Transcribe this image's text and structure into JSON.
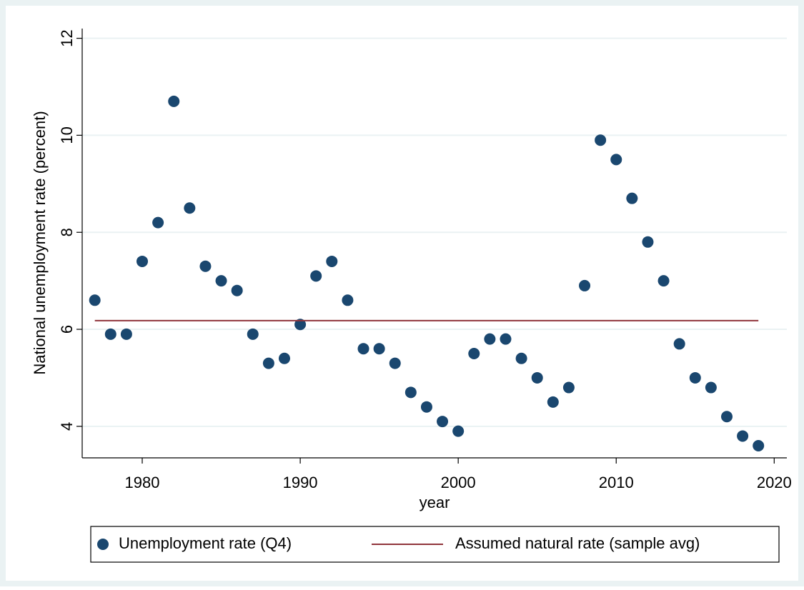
{
  "chart_data": {
    "type": "scatter",
    "x_label": "year",
    "y_label": "National unemployment rate (percent)",
    "xlim": [
      1976.2,
      2020.8
    ],
    "xticks": [
      1980,
      1990,
      2000,
      2010,
      2020
    ],
    "ylim": [
      3.35,
      12.2
    ],
    "yticks": [
      4,
      6,
      8,
      10,
      12
    ],
    "grid": true,
    "legend": "bottom",
    "series": [
      {
        "name": "Unemployment rate (Q4)",
        "color": "#1a476f",
        "type": "scatter",
        "x": [
          1977,
          1978,
          1979,
          1980,
          1981,
          1982,
          1983,
          1984,
          1985,
          1986,
          1987,
          1988,
          1989,
          1990,
          1991,
          1992,
          1993,
          1994,
          1995,
          1996,
          1997,
          1998,
          1999,
          2000,
          2001,
          2002,
          2003,
          2004,
          2005,
          2006,
          2007,
          2008,
          2009,
          2010,
          2011,
          2012,
          2013,
          2014,
          2015,
          2016,
          2017,
          2018,
          2019
        ],
        "values": [
          6.6,
          5.9,
          5.9,
          7.4,
          8.2,
          10.7,
          8.5,
          7.3,
          7.0,
          6.8,
          5.9,
          5.3,
          5.4,
          6.1,
          7.1,
          7.4,
          6.6,
          5.6,
          5.6,
          5.3,
          4.7,
          4.4,
          4.1,
          3.9,
          5.5,
          5.8,
          5.8,
          5.4,
          5.0,
          4.5,
          4.8,
          6.9,
          9.9,
          9.5,
          8.7,
          7.8,
          7.0,
          5.7,
          5.0,
          4.8,
          4.2,
          3.8,
          3.6
        ]
      },
      {
        "name": "Assumed natural rate (sample avg)",
        "color": "#90353b",
        "type": "line",
        "x": [
          1977,
          2019
        ],
        "values": [
          6.18,
          6.18
        ]
      }
    ]
  }
}
